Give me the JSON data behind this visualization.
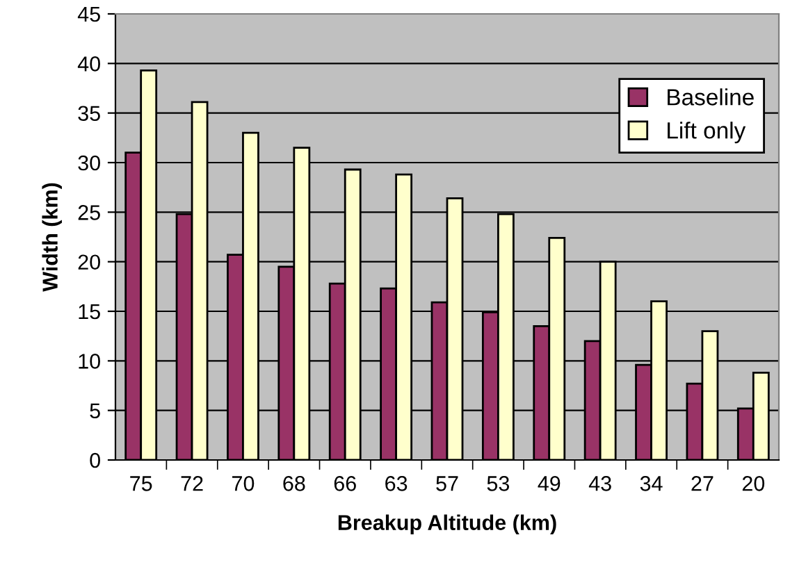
{
  "chart_data": {
    "type": "bar",
    "xlabel": "Breakup Altitude (km)",
    "ylabel": "Width (km)",
    "categories": [
      "75",
      "72",
      "70",
      "68",
      "66",
      "63",
      "57",
      "53",
      "49",
      "43",
      "34",
      "27",
      "20"
    ],
    "series": [
      {
        "name": "Baseline",
        "color": "#993366",
        "values": [
          31,
          24.8,
          20.7,
          19.5,
          17.8,
          17.3,
          15.9,
          14.9,
          13.5,
          12,
          9.6,
          7.7,
          5.2
        ]
      },
      {
        "name": "Lift only",
        "color": "#ffffcc",
        "values": [
          39.3,
          36.1,
          33,
          31.5,
          29.3,
          28.8,
          26.4,
          24.8,
          22.4,
          20,
          16,
          13,
          8.8
        ]
      }
    ],
    "ylim": [
      0,
      45
    ],
    "yticks": [
      0,
      5,
      10,
      15,
      20,
      25,
      30,
      35,
      40,
      45
    ],
    "grid": "y",
    "legend": "top right"
  }
}
